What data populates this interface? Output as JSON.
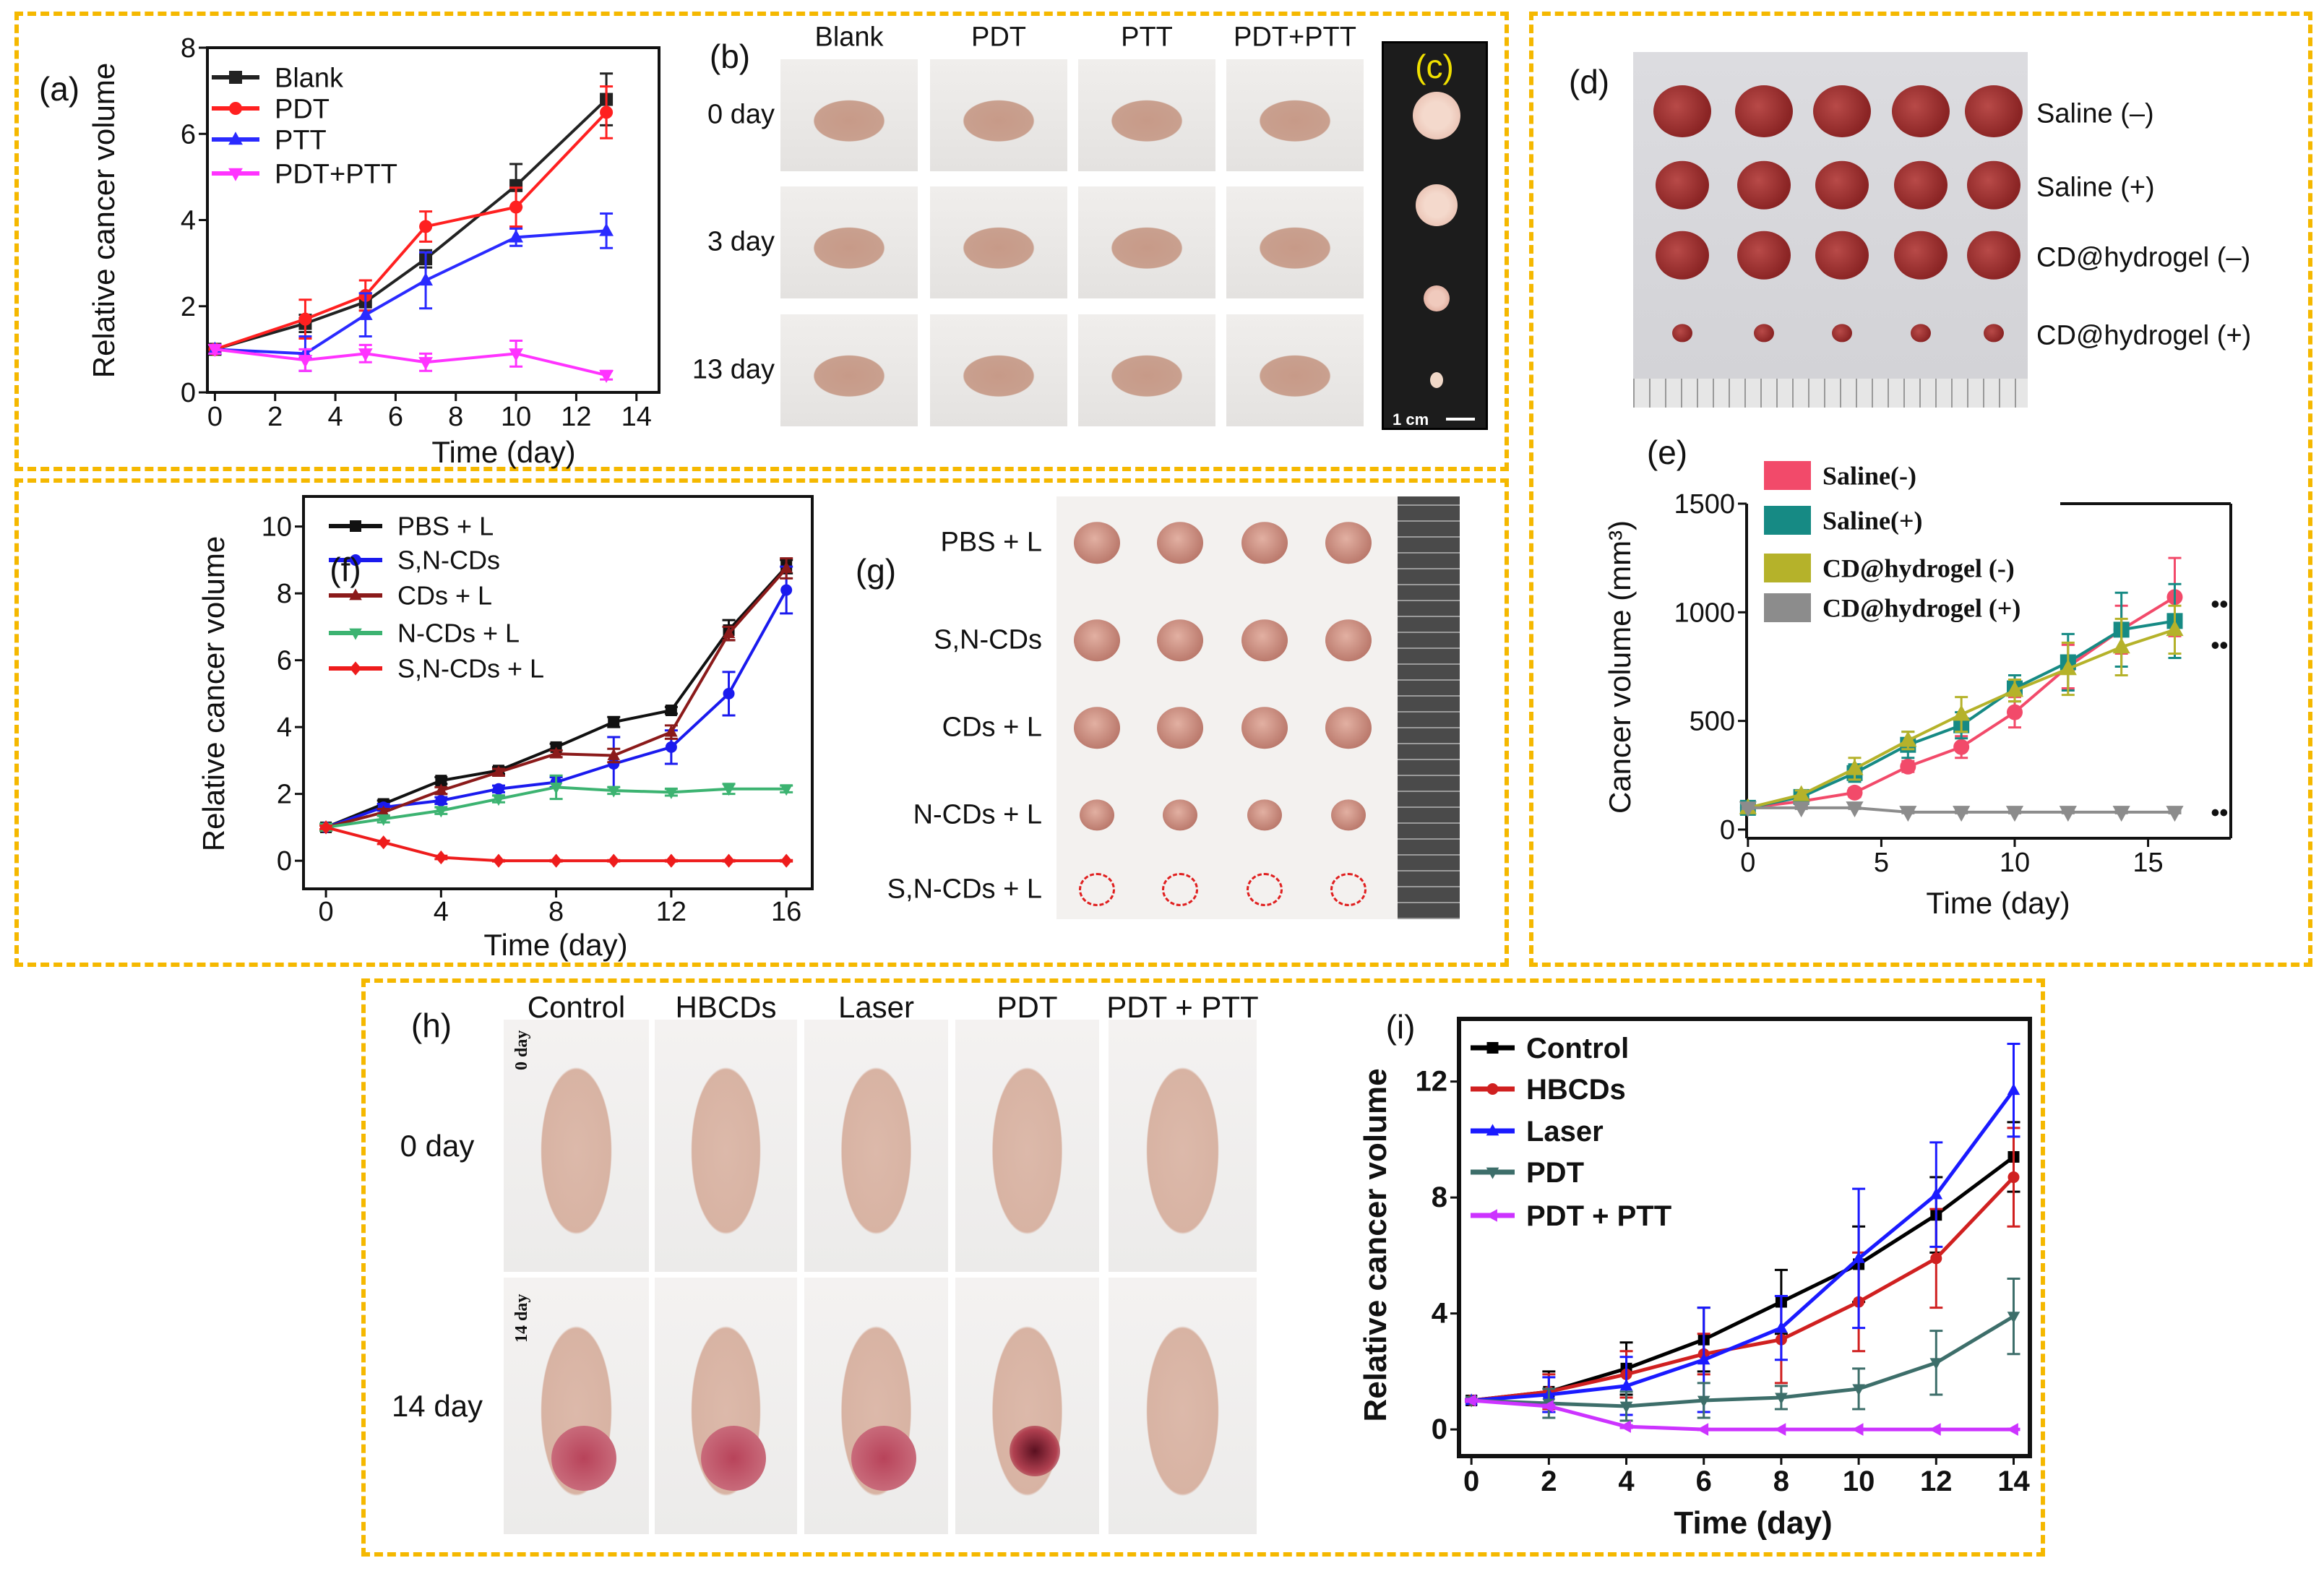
{
  "panel_labels": {
    "a": "(a)",
    "b": "(b)",
    "c": "(c)",
    "d": "(d)",
    "e": "(e)",
    "f": "(f)",
    "g": "(g)",
    "h": "(h)",
    "i": "(i)"
  },
  "photo_b": {
    "columns": [
      "Blank",
      "PDT",
      "PTT",
      "PDT+PTT"
    ],
    "rows": [
      "0 day",
      "3 day",
      "13 day"
    ]
  },
  "photo_c": {
    "scale_bar": "1 cm"
  },
  "photo_d": {
    "rows": [
      "Saline (–)",
      "Saline (+)",
      "CD@hydrogel (–)",
      "CD@hydrogel (+)"
    ]
  },
  "photo_g": {
    "rows": [
      "PBS + L",
      "S,N-CDs",
      "CDs + L",
      "N-CDs + L",
      "S,N-CDs + L"
    ]
  },
  "photo_h": {
    "columns": [
      "Control",
      "HBCDs",
      "Laser",
      "PDT",
      "PDT + PTT"
    ],
    "rows": [
      "0 day",
      "14 day"
    ],
    "in_photo_labels": [
      "0 day",
      "14 day"
    ]
  },
  "colors": {
    "frame_border": "#f5b800"
  },
  "chart_data": [
    {
      "id": "a",
      "type": "line",
      "xlabel": "Time (day)",
      "ylabel": "Relative cancer volume",
      "xlim": [
        0,
        14
      ],
      "ylim": [
        0,
        8
      ],
      "xticks": [
        "0",
        "2",
        "4",
        "6",
        "8",
        "10",
        "12",
        "14"
      ],
      "yticks": [
        "0",
        "2",
        "4",
        "6",
        "8"
      ],
      "legend": "top-left",
      "x": [
        0,
        3,
        5,
        7,
        10,
        13
      ],
      "series": [
        {
          "name": "Blank",
          "color": "#222222",
          "marker": "square",
          "values": [
            1,
            1.6,
            2.1,
            3.1,
            4.8,
            6.8
          ],
          "errors": [
            0.1,
            0.2,
            0.2,
            0.2,
            0.5,
            0.6
          ]
        },
        {
          "name": "PDT",
          "color": "#ff2020",
          "marker": "circle",
          "values": [
            1,
            1.7,
            2.25,
            3.85,
            4.3,
            6.5
          ],
          "errors": [
            0.1,
            0.45,
            0.35,
            0.35,
            0.45,
            0.6
          ]
        },
        {
          "name": "PTT",
          "color": "#2a2aff",
          "marker": "triangle-up",
          "values": [
            1,
            0.9,
            1.8,
            2.6,
            3.6,
            3.75
          ],
          "errors": [
            0.1,
            0.4,
            0.5,
            0.65,
            0.2,
            0.4
          ]
        },
        {
          "name": "PDT+PTT",
          "color": "#ff33ff",
          "marker": "triangle-down",
          "values": [
            1,
            0.75,
            0.9,
            0.7,
            0.9,
            0.4
          ],
          "errors": [
            0.1,
            0.25,
            0.2,
            0.2,
            0.3,
            0.1
          ]
        }
      ]
    },
    {
      "id": "f",
      "type": "line",
      "xlabel": "Time (day)",
      "ylabel": "Relative cancer volume",
      "xlim": [
        0,
        16
      ],
      "ylim": [
        0,
        10
      ],
      "xticks": [
        "0",
        "4",
        "8",
        "12",
        "16"
      ],
      "yticks": [
        "0",
        "2",
        "4",
        "6",
        "8",
        "10"
      ],
      "legend": "top-left",
      "x": [
        0,
        2,
        4,
        6,
        8,
        10,
        12,
        14,
        16
      ],
      "series": [
        {
          "name": "PBS + L",
          "color": "#111111",
          "marker": "square",
          "values": [
            1,
            1.7,
            2.4,
            2.7,
            3.4,
            4.15,
            4.5,
            6.9,
            8.8
          ],
          "errors": [
            0.1,
            0.1,
            0.1,
            0.1,
            0.1,
            0.15,
            0.1,
            0.3,
            0.2
          ]
        },
        {
          "name": "S,N-CDs",
          "color": "#1a1aee",
          "marker": "circle",
          "values": [
            1,
            1.6,
            1.8,
            2.15,
            2.35,
            2.9,
            3.4,
            5.0,
            8.1
          ],
          "errors": [
            0.1,
            0.1,
            0.1,
            0.1,
            0.15,
            0.8,
            0.5,
            0.65,
            0.7
          ]
        },
        {
          "name": "CDs + L",
          "color": "#8b1a1a",
          "marker": "triangle-up",
          "values": [
            1,
            1.45,
            2.1,
            2.65,
            3.2,
            3.15,
            3.85,
            6.8,
            8.75
          ],
          "errors": [
            0.1,
            0.1,
            0.1,
            0.1,
            0.1,
            0.2,
            0.2,
            0.2,
            0.3
          ]
        },
        {
          "name": "N-CDs + L",
          "color": "#3cb371",
          "marker": "triangle-down",
          "values": [
            1,
            1.25,
            1.5,
            1.85,
            2.2,
            2.1,
            2.05,
            2.15,
            2.15
          ],
          "errors": [
            0.1,
            0.1,
            0.1,
            0.1,
            0.35,
            0.1,
            0.1,
            0.15,
            0.1
          ]
        },
        {
          "name": "S,N-CDs + L",
          "color": "#ee1c1c",
          "marker": "diamond",
          "values": [
            1,
            0.55,
            0.1,
            0,
            0,
            0,
            0,
            0,
            0
          ],
          "errors": [
            0.05,
            0.05,
            0.05,
            0.02,
            0.02,
            0.02,
            0.02,
            0.02,
            0.02
          ]
        }
      ]
    },
    {
      "id": "e",
      "type": "line",
      "xlabel": "Time (day)",
      "ylabel": "Cancer volume (mm³)",
      "xlim": [
        0,
        18
      ],
      "ylim": [
        0,
        1500
      ],
      "xticks": [
        "0",
        "5",
        "10",
        "15"
      ],
      "yticks": [
        "0",
        "500",
        "1000",
        "1500"
      ],
      "legend": "top-left",
      "annotations": [
        "••",
        "••",
        "••"
      ],
      "x": [
        0,
        2,
        4,
        6,
        8,
        10,
        12,
        14,
        16
      ],
      "series": [
        {
          "name": "Saline(-)",
          "color": "#f24a6a",
          "marker": "circle",
          "values": [
            100,
            130,
            170,
            290,
            380,
            540,
            750,
            920,
            1070
          ],
          "errors": [
            20,
            20,
            20,
            25,
            50,
            70,
            100,
            110,
            180
          ]
        },
        {
          "name": "Saline(+)",
          "color": "#168a84",
          "marker": "square",
          "values": [
            100,
            150,
            260,
            390,
            480,
            650,
            770,
            920,
            960
          ],
          "errors": [
            20,
            20,
            40,
            60,
            60,
            60,
            130,
            170,
            170
          ]
        },
        {
          "name": "CD@hydrogel (-)",
          "color": "#b5b22a",
          "marker": "triangle-up",
          "values": [
            100,
            160,
            280,
            410,
            530,
            640,
            740,
            840,
            920
          ],
          "errors": [
            20,
            20,
            50,
            40,
            80,
            50,
            120,
            130,
            110
          ]
        },
        {
          "name": "CD@hydrogel (+)",
          "color": "#8c8c8c",
          "marker": "triangle-down",
          "values": [
            100,
            100,
            100,
            80,
            80,
            80,
            80,
            80,
            80
          ],
          "errors": [
            5,
            5,
            5,
            5,
            5,
            5,
            5,
            5,
            5
          ]
        }
      ]
    },
    {
      "id": "i",
      "type": "line",
      "xlabel": "Time (day)",
      "ylabel": "Relative cancer volume",
      "xlim": [
        0,
        14
      ],
      "ylim": [
        0,
        14
      ],
      "xticks": [
        "0",
        "2",
        "4",
        "6",
        "8",
        "10",
        "12",
        "14"
      ],
      "yticks": [
        "0",
        "4",
        "8",
        "12"
      ],
      "legend": "top-left",
      "x": [
        0,
        2,
        4,
        6,
        8,
        10,
        12,
        14
      ],
      "series": [
        {
          "name": "Control",
          "color": "#000000",
          "marker": "square",
          "values": [
            1,
            1.3,
            2.1,
            3.1,
            4.4,
            5.7,
            7.4,
            9.4
          ],
          "errors": [
            0.05,
            0.7,
            0.9,
            1.1,
            1.1,
            1.3,
            1.3,
            1.2
          ]
        },
        {
          "name": "HBCDs",
          "color": "#d02020",
          "marker": "circle",
          "values": [
            1,
            1.3,
            1.9,
            2.6,
            3.1,
            4.4,
            5.9,
            8.7
          ],
          "errors": [
            0.05,
            0.6,
            0.8,
            0.7,
            1.5,
            1.7,
            1.7,
            1.7
          ]
        },
        {
          "name": "Laser",
          "color": "#1a1aff",
          "marker": "triangle-up",
          "values": [
            1,
            1.2,
            1.5,
            2.4,
            3.5,
            5.9,
            8.1,
            11.7
          ],
          "errors": [
            0.05,
            0.6,
            1.0,
            1.8,
            1.1,
            2.4,
            1.8,
            1.6
          ]
        },
        {
          "name": "PDT",
          "color": "#3d6e6a",
          "marker": "triangle-down",
          "values": [
            1,
            0.9,
            0.8,
            1.0,
            1.1,
            1.4,
            2.3,
            3.9
          ],
          "errors": [
            0.05,
            0.5,
            0.5,
            0.6,
            0.4,
            0.7,
            1.1,
            1.3
          ]
        },
        {
          "name": "PDT + PTT",
          "color": "#cc33ff",
          "marker": "triangle-left",
          "values": [
            1,
            0.8,
            0.1,
            0,
            0,
            0,
            0,
            0
          ],
          "errors": [
            0.05,
            0.05,
            0.05,
            0.02,
            0.02,
            0.02,
            0.02,
            0.02
          ]
        }
      ]
    }
  ]
}
